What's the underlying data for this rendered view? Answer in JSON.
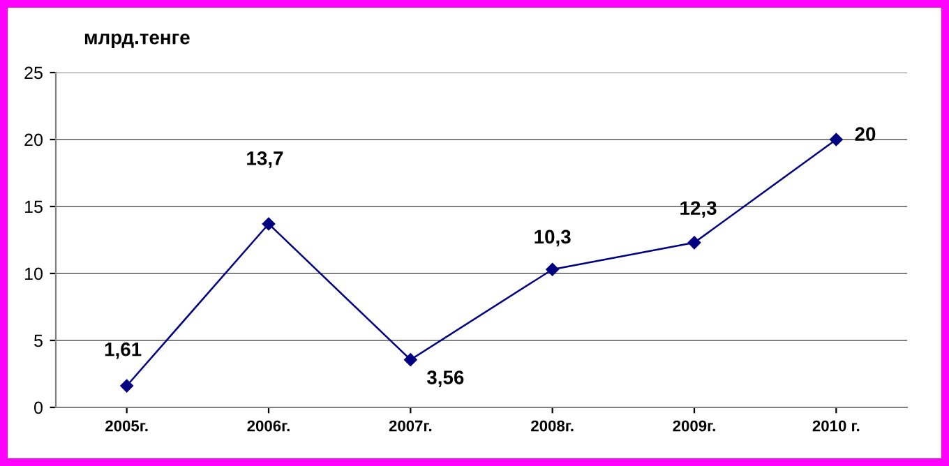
{
  "chart_data": {
    "type": "line",
    "ylabel": "млрд.тенге",
    "categories": [
      "2005г.",
      "2006г.",
      "2007г.",
      "2008г.",
      "2009г.",
      "2010 г."
    ],
    "series": [
      {
        "color": "#000080",
        "values": [
          1.61,
          13.7,
          3.56,
          10.3,
          12.3,
          20
        ],
        "value_labels": [
          "1,61",
          "13,7",
          "3,56",
          "10,3",
          "12,3",
          "20"
        ]
      }
    ],
    "ylim": [
      0,
      25
    ],
    "yticks": [
      0,
      5,
      10,
      15,
      20,
      25
    ],
    "grid": "y",
    "marker": "diamond",
    "line_style": "solid",
    "legend": false
  }
}
